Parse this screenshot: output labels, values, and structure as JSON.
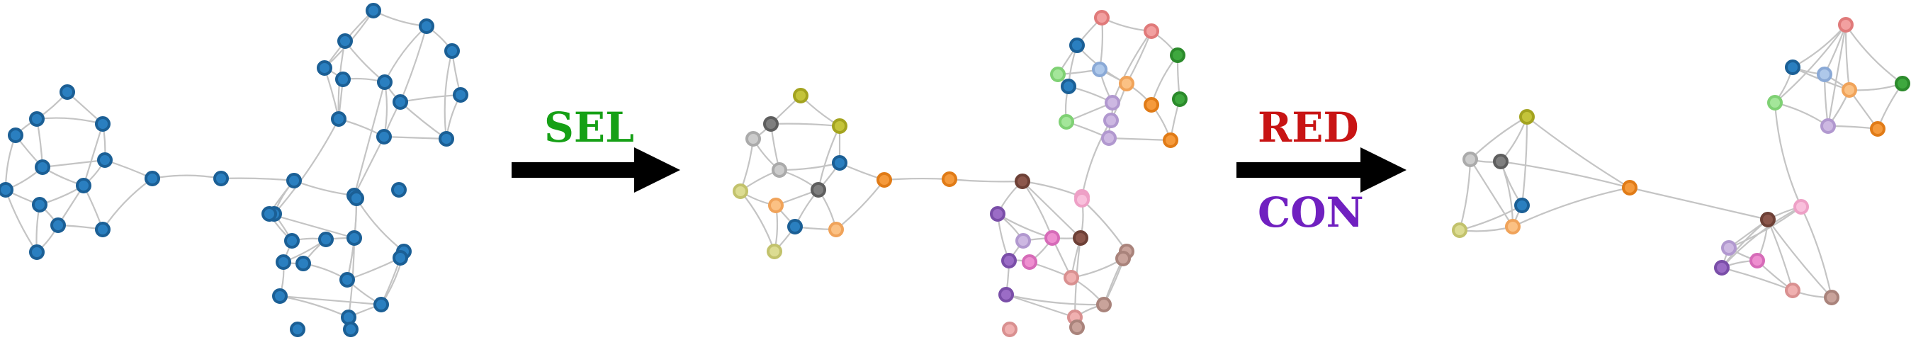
{
  "steps": {
    "sel": {
      "label": "SEL",
      "color": "#16a016"
    },
    "red": {
      "label": "RED",
      "color": "#c81414"
    },
    "con": {
      "label": "CON",
      "color": "#7020c0"
    }
  },
  "palette": {
    "blue": "#2a7fc0",
    "edge": "#c4c4c4",
    "arrow": "#000000"
  }
}
